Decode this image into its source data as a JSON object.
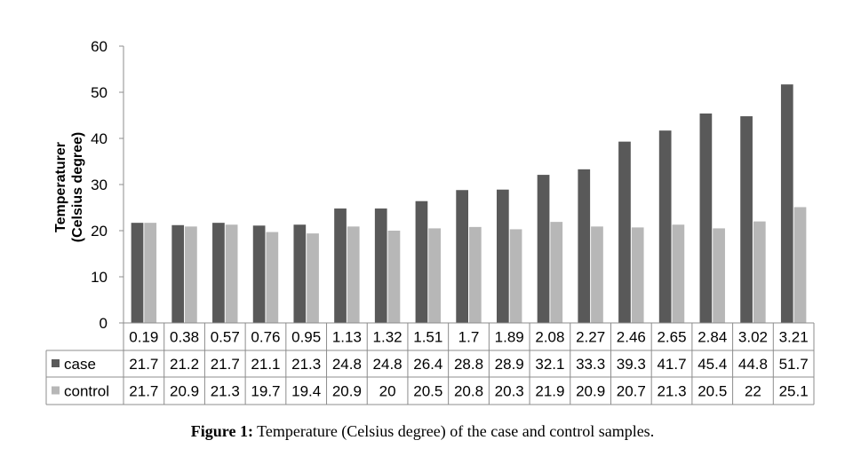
{
  "chart_data": {
    "type": "bar",
    "categories": [
      "0.19",
      "0.38",
      "0.57",
      "0.76",
      "0.95",
      "1.13",
      "1.32",
      "1.51",
      "1.7",
      "1.89",
      "2.08",
      "2.27",
      "2.46",
      "2.65",
      "2.84",
      "3.02",
      "3.21"
    ],
    "series": [
      {
        "name": "case",
        "color": "#595959",
        "values": [
          21.7,
          21.2,
          21.7,
          21.1,
          21.3,
          24.8,
          24.8,
          26.4,
          28.8,
          28.9,
          32.1,
          33.3,
          39.3,
          41.7,
          45.4,
          44.8,
          51.7
        ]
      },
      {
        "name": "control",
        "color": "#b7b7b7",
        "values": [
          21.7,
          20.9,
          21.3,
          19.7,
          19.4,
          20.9,
          20,
          20.5,
          20.8,
          20.3,
          21.9,
          20.9,
          20.7,
          21.3,
          20.5,
          22,
          25.1
        ]
      }
    ],
    "title": "",
    "xlabel": "",
    "ylabel_lines": [
      "Temperaturer",
      "(Celsius degree)"
    ],
    "ylim": [
      0,
      60
    ],
    "yticks": [
      0,
      10,
      20,
      30,
      40,
      50,
      60
    ],
    "grid": false,
    "legend": "data-table-left",
    "data_table": true
  },
  "caption": {
    "label": "Figure 1:",
    "text": "Temperature (Celsius degree) of the case and control samples."
  }
}
